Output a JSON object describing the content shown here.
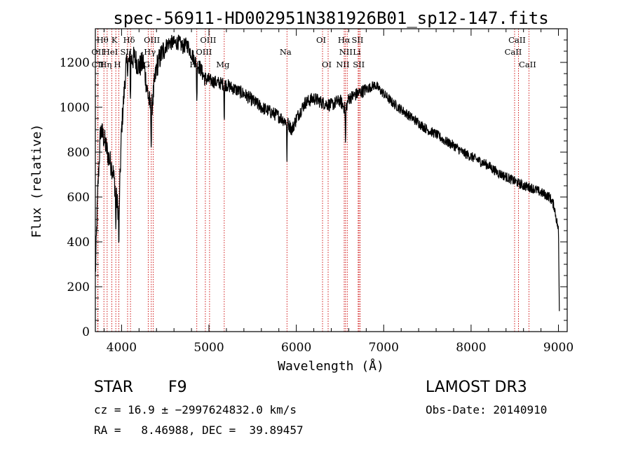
{
  "chart_data": {
    "type": "line",
    "title": "spec-56911-HD002951N381926B01_sp12-147.fits",
    "xlabel": "Wavelength (Å)",
    "ylabel": "Flux (relative)",
    "xlim": [
      3700,
      9100
    ],
    "ylim": [
      0,
      1350
    ],
    "xticks": [
      4000,
      5000,
      6000,
      7000,
      8000,
      9000
    ],
    "yticks": [
      0,
      200,
      400,
      600,
      800,
      1000,
      1200
    ],
    "continuum": [
      [
        3700,
        250
      ],
      [
        3730,
        650
      ],
      [
        3760,
        900
      ],
      [
        3800,
        860
      ],
      [
        3850,
        780
      ],
      [
        3900,
        720
      ],
      [
        3940,
        600
      ],
      [
        3970,
        520
      ],
      [
        4000,
        900
      ],
      [
        4050,
        1180
      ],
      [
        4100,
        1210
      ],
      [
        4150,
        1220
      ],
      [
        4200,
        1180
      ],
      [
        4250,
        1200
      ],
      [
        4300,
        1060
      ],
      [
        4340,
        980
      ],
      [
        4400,
        1180
      ],
      [
        4450,
        1230
      ],
      [
        4500,
        1270
      ],
      [
        4550,
        1290
      ],
      [
        4600,
        1285
      ],
      [
        4650,
        1290
      ],
      [
        4700,
        1270
      ],
      [
        4750,
        1280
      ],
      [
        4800,
        1240
      ],
      [
        4861,
        1190
      ],
      [
        4900,
        1175
      ],
      [
        4950,
        1130
      ],
      [
        5000,
        1120
      ],
      [
        5100,
        1110
      ],
      [
        5200,
        1100
      ],
      [
        5300,
        1080
      ],
      [
        5400,
        1060
      ],
      [
        5500,
        1030
      ],
      [
        5600,
        1000
      ],
      [
        5700,
        980
      ],
      [
        5800,
        960
      ],
      [
        5900,
        930
      ],
      [
        5950,
        900
      ],
      [
        6000,
        950
      ],
      [
        6100,
        1020
      ],
      [
        6200,
        1040
      ],
      [
        6300,
        1020
      ],
      [
        6400,
        1010
      ],
      [
        6500,
        1030
      ],
      [
        6563,
        990
      ],
      [
        6600,
        1040
      ],
      [
        6700,
        1060
      ],
      [
        6800,
        1080
      ],
      [
        6900,
        1100
      ],
      [
        6950,
        1080
      ],
      [
        7000,
        1060
      ],
      [
        7100,
        1020
      ],
      [
        7200,
        990
      ],
      [
        7300,
        960
      ],
      [
        7400,
        930
      ],
      [
        7500,
        900
      ],
      [
        7600,
        880
      ],
      [
        7700,
        850
      ],
      [
        7800,
        830
      ],
      [
        7900,
        800
      ],
      [
        8000,
        780
      ],
      [
        8100,
        760
      ],
      [
        8200,
        740
      ],
      [
        8300,
        710
      ],
      [
        8400,
        690
      ],
      [
        8500,
        670
      ],
      [
        8600,
        650
      ],
      [
        8700,
        640
      ],
      [
        8800,
        620
      ],
      [
        8900,
        600
      ],
      [
        8950,
        560
      ],
      [
        9000,
        450
      ],
      [
        9010,
        100
      ]
    ],
    "spectral_lines": [
      {
        "name": "Hθ",
        "wavelength": 3798
      },
      {
        "name": "OII",
        "wavelength": 3727
      },
      {
        "name": "CII",
        "wavelength": 3730
      },
      {
        "name": "Hη",
        "wavelength": 3835
      },
      {
        "name": "HeI",
        "wavelength": 3889
      },
      {
        "name": "K",
        "wavelength": 3934
      },
      {
        "name": "H",
        "wavelength": 3969
      },
      {
        "name": "SII",
        "wavelength": 4069
      },
      {
        "name": "Hδ",
        "wavelength": 4102
      },
      {
        "name": "OIII",
        "wavelength": 4363
      },
      {
        "name": "Hγ",
        "wavelength": 4340
      },
      {
        "name": "G",
        "wavelength": 4305
      },
      {
        "name": "Hβ",
        "wavelength": 4861
      },
      {
        "name": "OIII",
        "wavelength": 4959
      },
      {
        "name": "OIII",
        "wavelength": 5007
      },
      {
        "name": "Mg",
        "wavelength": 5175
      },
      {
        "name": "Na",
        "wavelength": 5893
      },
      {
        "name": "OI",
        "wavelength": 6300
      },
      {
        "name": "OI",
        "wavelength": 6364
      },
      {
        "name": "NII",
        "wavelength": 6548
      },
      {
        "name": "Hα",
        "wavelength": 6563
      },
      {
        "name": "NII",
        "wavelength": 6583
      },
      {
        "name": "SII",
        "wavelength": 6717
      },
      {
        "name": "Li",
        "wavelength": 6708
      },
      {
        "name": "SII",
        "wavelength": 6731
      },
      {
        "name": "CaII",
        "wavelength": 8498
      },
      {
        "name": "CaII",
        "wavelength": 8542
      },
      {
        "name": "CaII",
        "wavelength": 8662
      }
    ],
    "line_label_rows": [
      {
        "text": "Hθ",
        "row": 0,
        "wavelength": 3798
      },
      {
        "text": "K",
        "row": 0,
        "wavelength": 3934
      },
      {
        "text": "Hδ",
        "row": 0,
        "wavelength": 4102
      },
      {
        "text": "OII",
        "row": 1,
        "wavelength": 3745
      },
      {
        "text": "HeI",
        "row": 1,
        "wavelength": 3889
      },
      {
        "text": "SII",
        "row": 1,
        "wavelength": 4069
      },
      {
        "text": "CII",
        "row": 2,
        "wavelength": 3745
      },
      {
        "text": "Hη",
        "row": 2,
        "wavelength": 3835
      },
      {
        "text": "H",
        "row": 2,
        "wavelength": 3969
      },
      {
        "text": "OIII",
        "row": 0,
        "wavelength": 4363
      },
      {
        "text": "Hγ",
        "row": 1,
        "wavelength": 4340
      },
      {
        "text": "G",
        "row": 2,
        "wavelength": 4305
      },
      {
        "text": "OIII",
        "row": 0,
        "wavelength": 5007
      },
      {
        "text": "OIII",
        "row": 1,
        "wavelength": 4959
      },
      {
        "text": "Hβ",
        "row": 2,
        "wavelength": 4861
      },
      {
        "text": "Mg",
        "row": 2,
        "wavelength": 5175
      },
      {
        "text": "Na",
        "row": 1,
        "wavelength": 5893
      },
      {
        "text": "OI",
        "row": 0,
        "wavelength": 6300
      },
      {
        "text": "OI",
        "row": 2,
        "wavelength": 6364
      },
      {
        "text": "Hα",
        "row": 0,
        "wavelength": 6563
      },
      {
        "text": "SII",
        "row": 0,
        "wavelength": 6717
      },
      {
        "text": "NII",
        "row": 1,
        "wavelength": 6583
      },
      {
        "text": "Li",
        "row": 1,
        "wavelength": 6708
      },
      {
        "text": "NII",
        "row": 2,
        "wavelength": 6548
      },
      {
        "text": "SII",
        "row": 2,
        "wavelength": 6731
      },
      {
        "text": "CaII",
        "row": 0,
        "wavelength": 8542
      },
      {
        "text": "CaII",
        "row": 1,
        "wavelength": 8498
      },
      {
        "text": "CaII",
        "row": 2,
        "wavelength": 8662
      }
    ],
    "colors": {
      "spectrum": "#000000",
      "line_marker": "#cc0000",
      "axis": "#000000"
    }
  },
  "info": {
    "object_type": "STAR",
    "subclass": "F9",
    "survey": "LAMOST DR3",
    "cz": "cz = 16.9 ± −2997624832.0 km/s",
    "obs_date": "Obs-Date: 20140910",
    "coords": "RA =   8.46988, DEC =  39.89457"
  }
}
